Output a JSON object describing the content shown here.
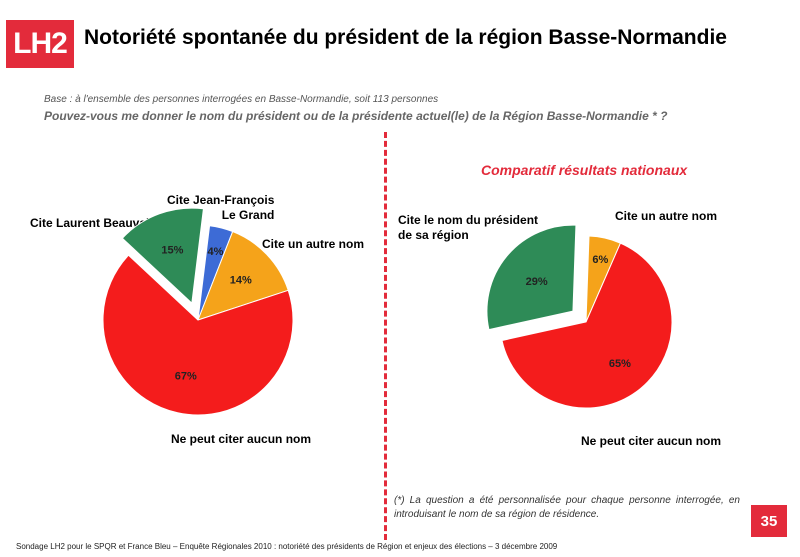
{
  "header": {
    "logo": "LH2",
    "title": "Notoriété spontanée du président de la région Basse-Normandie"
  },
  "base": "Base : à l'ensemble des personnes interrogées en Basse-Normandie, soit 113 personnes",
  "question": "Pouvez-vous me donner le nom du président ou de la présidente actuel(le) de la Région Basse-Normandie * ?",
  "comparatif_title": "Comparatif résultats nationaux",
  "chart_data": [
    {
      "type": "pie",
      "title": "",
      "slices": [
        {
          "label_lines": [
            "Cite Jean-François",
            "Le Grand"
          ],
          "value": 4,
          "display": "4%",
          "color": "#3d6bd6"
        },
        {
          "label_lines": [
            "Cite un autre nom"
          ],
          "value": 14,
          "display": "14%",
          "color": "#f5a31a"
        },
        {
          "label_lines": [
            "Ne peut citer aucun nom"
          ],
          "value": 67,
          "display": "67%",
          "color": "#f41c1c"
        },
        {
          "label_lines": [
            "Cite Laurent Beauvais"
          ],
          "value": 15,
          "display": "15%",
          "color": "#2e8b57"
        }
      ]
    },
    {
      "type": "pie",
      "title": "Comparatif résultats nationaux",
      "slices": [
        {
          "label_lines": [
            "Cite un autre nom"
          ],
          "value": 6,
          "display": "6%",
          "color": "#f5a31a"
        },
        {
          "label_lines": [
            "Ne peut citer aucun nom"
          ],
          "value": 65,
          "display": "65%",
          "color": "#f41c1c"
        },
        {
          "label_lines": [
            "Cite le nom du président",
            "de sa région"
          ],
          "value": 29,
          "display": "29%",
          "color": "#2e8b57"
        }
      ]
    }
  ],
  "footnote": "(*) La question a été personnalisée pour chaque personne interrogée, en introduisant le nom de sa région de résidence.",
  "page_number": "35",
  "source": "Sondage LH2 pour le SPQR et France Bleu – Enquête Régionales 2010 : notoriété des présidents de Région et enjeux des élections – 3 décembre 2009"
}
